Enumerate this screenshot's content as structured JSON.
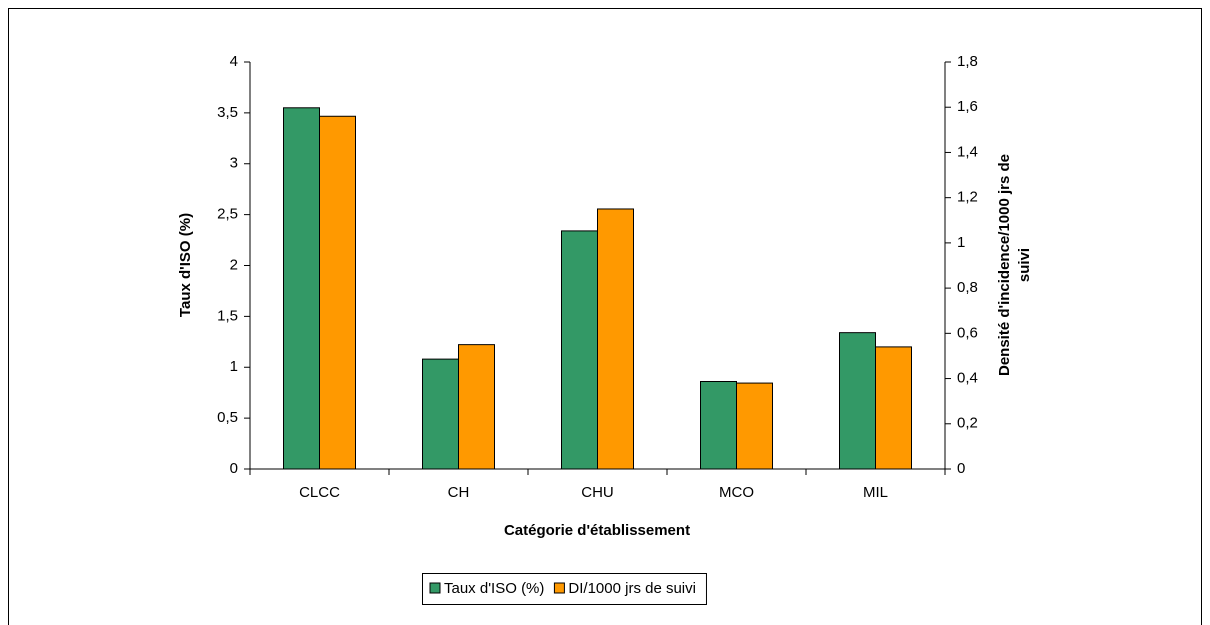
{
  "chart_data": {
    "type": "bar",
    "xlabel": "Catégorie d'établissement",
    "ylabel": "Taux d'ISO (%)",
    "y2label": [
      "Densité d'incidence/1000 jrs de",
      "suivi"
    ],
    "categories": [
      "CLCC",
      "CH",
      "CHU",
      "MCO",
      "MIL"
    ],
    "series": [
      {
        "name": "Taux d'ISO (%)",
        "color": "#339966",
        "values": [
          3.55,
          1.08,
          2.34,
          0.86,
          1.34
        ]
      },
      {
        "name": "DI/1000 jrs de suivi",
        "color": "#ff9900",
        "axis": "y2",
        "values": [
          1.56,
          0.55,
          1.15,
          0.38,
          0.54
        ]
      }
    ],
    "ylim": [
      0,
      4
    ],
    "yticks": [
      0,
      {
        "value": 0.5,
        "label": "0,5"
      },
      1,
      {
        "value": 1.5,
        "label": "1,5"
      },
      2,
      {
        "value": 2.5,
        "label": "2,5"
      },
      3,
      {
        "value": 3.5,
        "label": "3,5"
      },
      4
    ],
    "y2lim": [
      0,
      1.8
    ],
    "y2ticks": [
      0,
      {
        "value": 0.2,
        "label": "0,2"
      },
      {
        "value": 0.4,
        "label": "0,4"
      },
      {
        "value": 0.6,
        "label": "0,6"
      },
      {
        "value": 0.8,
        "label": "0,8"
      },
      1,
      {
        "value": 1.2,
        "label": "1,2"
      },
      {
        "value": 1.4,
        "label": "1,4"
      },
      {
        "value": 1.6,
        "label": "1,6"
      },
      {
        "value": 1.8,
        "label": "1,8"
      }
    ],
    "grid": false,
    "legend": "bottom"
  }
}
